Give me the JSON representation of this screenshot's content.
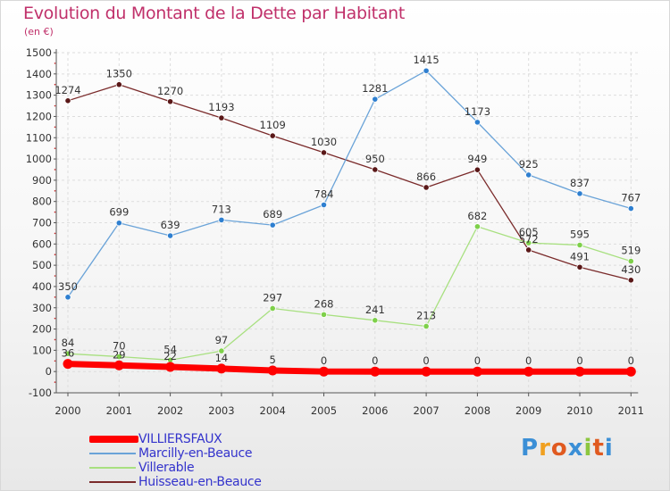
{
  "header": {
    "title": "Evolution du Montant de la Dette par Habitant",
    "subtitle": "(en €)"
  },
  "logo": {
    "letters": [
      "P",
      "r",
      "o",
      "x",
      "i",
      "t",
      "i"
    ],
    "colors": [
      "#3b8fd6",
      "#f0a020",
      "#e05a20",
      "#3b8fd6",
      "#8cc63f",
      "#e05a20",
      "#3b8fd6"
    ]
  },
  "chart_data": {
    "type": "line",
    "categories": [
      "2000",
      "2001",
      "2002",
      "2003",
      "2004",
      "2005",
      "2006",
      "2007",
      "2008",
      "2009",
      "2010",
      "2011"
    ],
    "ylim": [
      -100,
      1500
    ],
    "yticks": [
      -100,
      0,
      100,
      200,
      300,
      400,
      500,
      600,
      700,
      800,
      900,
      1000,
      1100,
      1200,
      1300,
      1400,
      1500
    ],
    "grid": true,
    "legend_position": "bottom-left",
    "series": [
      {
        "name": "VILLIERSFAUX",
        "color": "#ff0000",
        "values": [
          36,
          29,
          22,
          14,
          5,
          0,
          0,
          0,
          0,
          0,
          0,
          0
        ],
        "labels": [
          "36",
          "29",
          "22",
          "14",
          "5",
          "0",
          "0",
          "0",
          "0",
          "0",
          "0",
          "0"
        ]
      },
      {
        "name": "Marcilly-en-Beauce",
        "color": "#6aa3d8",
        "values": [
          350,
          699,
          639,
          713,
          689,
          784,
          1281,
          1415,
          1173,
          925,
          837,
          767
        ],
        "labels": [
          "350",
          "699",
          "639",
          "713",
          "689",
          "784",
          "1281",
          "1415",
          "1173",
          "925",
          "837",
          "767"
        ]
      },
      {
        "name": "Villerable",
        "color": "#a8e080",
        "values": [
          84,
          70,
          54,
          97,
          297,
          268,
          241,
          213,
          682,
          605,
          595,
          519
        ],
        "labels": [
          "84",
          "70",
          "54",
          "97",
          "297",
          "268",
          "241",
          "213",
          "682",
          "605",
          "595",
          "519"
        ]
      },
      {
        "name": "Huisseau-en-Beauce",
        "color": "#7a2a2a",
        "values": [
          1274,
          1350,
          1270,
          1193,
          1109,
          1030,
          950,
          866,
          949,
          572,
          491,
          430
        ],
        "labels": [
          "1274",
          "1350",
          "1270",
          "1193",
          "1109",
          "1030",
          "950",
          "866",
          "949",
          "572",
          "491",
          "430"
        ]
      }
    ]
  }
}
